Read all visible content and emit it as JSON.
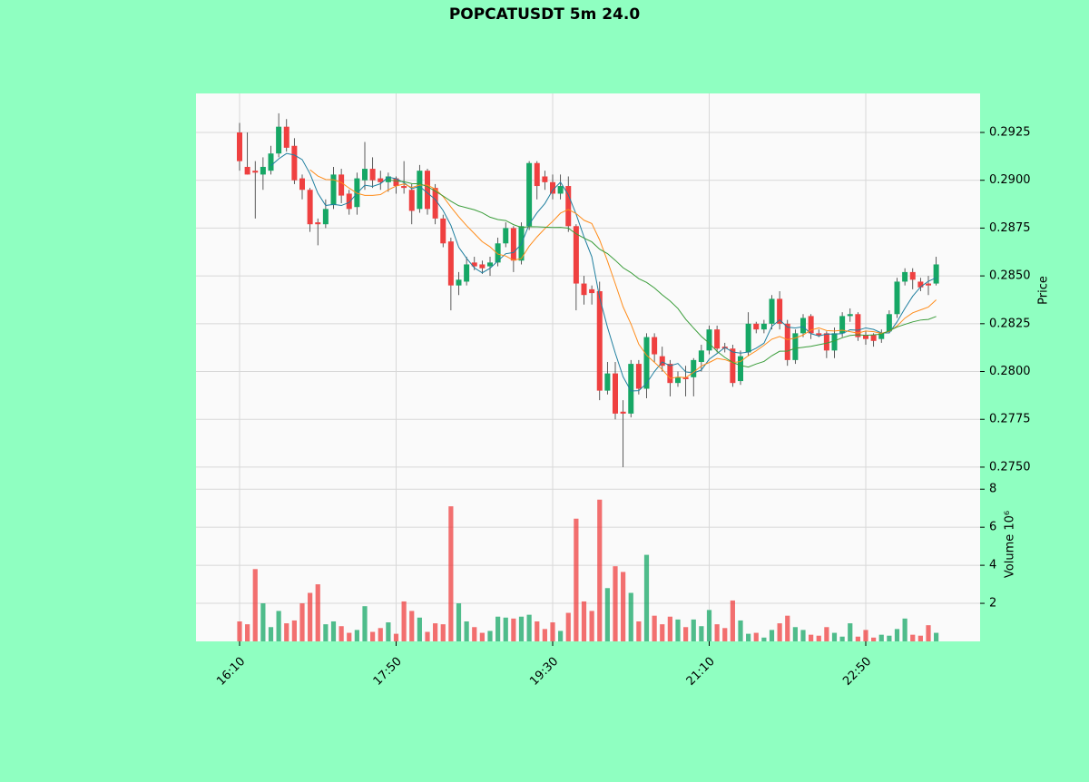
{
  "chart_data": {
    "type": "candlestick",
    "title": "POPCATUSDT 5m 24.0",
    "ylabel": "Price",
    "volume_label": "Volume  10⁶",
    "categories": [
      "16:10",
      null,
      null,
      null,
      null,
      null,
      null,
      null,
      null,
      null,
      null,
      null,
      null,
      null,
      null,
      null,
      null,
      null,
      null,
      null,
      "17:50",
      null,
      null,
      null,
      null,
      null,
      null,
      null,
      null,
      null,
      null,
      null,
      null,
      null,
      null,
      null,
      null,
      null,
      null,
      null,
      "19:30",
      null,
      null,
      null,
      null,
      null,
      null,
      null,
      null,
      null,
      null,
      null,
      null,
      null,
      null,
      null,
      null,
      null,
      null,
      null,
      "21:10",
      null,
      null,
      null,
      null,
      null,
      null,
      null,
      null,
      null,
      null,
      null,
      null,
      null,
      null,
      null,
      null,
      null,
      null,
      null,
      "22:50",
      null,
      null,
      null,
      null,
      null,
      null,
      null,
      null,
      null
    ],
    "open": [
      0.2925,
      0.2907,
      0.2905,
      0.2903,
      0.2905,
      0.2914,
      0.2928,
      0.2918,
      0.2901,
      0.2895,
      0.2878,
      0.2877,
      0.2887,
      0.2903,
      0.2893,
      0.2886,
      0.29,
      0.2906,
      0.2901,
      0.2899,
      0.2901,
      0.2897,
      0.2895,
      0.2885,
      0.2905,
      0.2896,
      0.288,
      0.2868,
      0.2845,
      0.2847,
      0.2857,
      0.2856,
      0.2855,
      0.2857,
      0.2867,
      0.2875,
      0.2858,
      0.2876,
      0.2909,
      0.2902,
      0.2899,
      0.2893,
      0.2897,
      0.2876,
      0.2846,
      0.2843,
      0.2842,
      0.279,
      0.2799,
      0.2779,
      0.2778,
      0.2804,
      0.2791,
      0.2818,
      0.2808,
      0.2804,
      0.2794,
      0.2797,
      0.2797,
      0.2805,
      0.2811,
      0.2822,
      0.2813,
      0.2812,
      0.2795,
      0.281,
      0.2825,
      0.2822,
      0.2825,
      0.2838,
      0.2825,
      0.2806,
      0.282,
      0.2829,
      0.282,
      0.282,
      0.2811,
      0.282,
      0.2829,
      0.283,
      0.2819,
      0.2819,
      0.2817,
      0.2821,
      0.283,
      0.2847,
      0.2852,
      0.2847,
      0.2846,
      0.2846
    ],
    "high": [
      0.293,
      0.2925,
      0.291,
      0.2912,
      0.2918,
      0.2935,
      0.2932,
      0.2922,
      0.2903,
      0.2896,
      0.288,
      0.289,
      0.2907,
      0.2906,
      0.2895,
      0.2904,
      0.292,
      0.2912,
      0.2905,
      0.2904,
      0.2902,
      0.291,
      0.2898,
      0.2908,
      0.2906,
      0.2898,
      0.2882,
      0.287,
      0.2852,
      0.286,
      0.286,
      0.2858,
      0.286,
      0.287,
      0.2878,
      0.2876,
      0.2878,
      0.291,
      0.291,
      0.2905,
      0.2903,
      0.2903,
      0.2902,
      0.2877,
      0.285,
      0.2845,
      0.2847,
      0.2805,
      0.2805,
      0.2785,
      0.2806,
      0.2806,
      0.282,
      0.282,
      0.2813,
      0.2806,
      0.28,
      0.2803,
      0.2807,
      0.2814,
      0.2824,
      0.2824,
      0.2815,
      0.2814,
      0.2811,
      0.2831,
      0.2826,
      0.2827,
      0.284,
      0.2842,
      0.2827,
      0.2822,
      0.283,
      0.283,
      0.2822,
      0.2821,
      0.2823,
      0.2831,
      0.2833,
      0.2831,
      0.2821,
      0.282,
      0.2822,
      0.2832,
      0.2849,
      0.2854,
      0.2854,
      0.2849,
      0.285,
      0.286
    ],
    "low": [
      0.2905,
      0.2903,
      0.288,
      0.2895,
      0.2903,
      0.2912,
      0.2915,
      0.2898,
      0.289,
      0.2873,
      0.2866,
      0.2875,
      0.2885,
      0.2888,
      0.2882,
      0.2882,
      0.2895,
      0.2896,
      0.2895,
      0.2894,
      0.2893,
      0.2893,
      0.2877,
      0.2883,
      0.2882,
      0.2877,
      0.2865,
      0.2832,
      0.284,
      0.2845,
      0.2853,
      0.2851,
      0.285,
      0.2855,
      0.2865,
      0.2852,
      0.2856,
      0.2874,
      0.289,
      0.2895,
      0.289,
      0.289,
      0.2873,
      0.2832,
      0.2835,
      0.2835,
      0.2785,
      0.2788,
      0.2775,
      0.275,
      0.2776,
      0.2788,
      0.2786,
      0.2805,
      0.28,
      0.2787,
      0.2792,
      0.2787,
      0.2787,
      0.28,
      0.2809,
      0.281,
      0.281,
      0.2792,
      0.2793,
      0.2808,
      0.282,
      0.282,
      0.2822,
      0.2822,
      0.2803,
      0.2804,
      0.2818,
      0.2817,
      0.2818,
      0.2807,
      0.2807,
      0.2818,
      0.2826,
      0.2816,
      0.2814,
      0.2813,
      0.2815,
      0.282,
      0.2828,
      0.2845,
      0.2843,
      0.2842,
      0.284,
      0.2845
    ],
    "close": [
      0.291,
      0.2903,
      0.2904,
      0.2907,
      0.2914,
      0.2928,
      0.2917,
      0.29,
      0.2895,
      0.2877,
      0.2877,
      0.2885,
      0.2903,
      0.2892,
      0.2885,
      0.2901,
      0.2906,
      0.29,
      0.2899,
      0.2902,
      0.2897,
      0.2896,
      0.2884,
      0.2905,
      0.2885,
      0.288,
      0.2867,
      0.2845,
      0.2848,
      0.2856,
      0.2855,
      0.2854,
      0.2857,
      0.2867,
      0.2875,
      0.2858,
      0.2876,
      0.2909,
      0.2897,
      0.2899,
      0.2893,
      0.2897,
      0.2876,
      0.2846,
      0.284,
      0.2841,
      0.279,
      0.2799,
      0.2778,
      0.2778,
      0.2804,
      0.2791,
      0.2818,
      0.2809,
      0.2803,
      0.2794,
      0.2797,
      0.2796,
      0.2806,
      0.2811,
      0.2822,
      0.2812,
      0.2812,
      0.2794,
      0.2808,
      0.2825,
      0.2822,
      0.2825,
      0.2838,
      0.2825,
      0.2806,
      0.282,
      0.2828,
      0.282,
      0.2819,
      0.2811,
      0.282,
      0.2829,
      0.283,
      0.2818,
      0.2817,
      0.2816,
      0.282,
      0.283,
      0.2847,
      0.2852,
      0.2848,
      0.2844,
      0.2845,
      0.2856
    ],
    "volume": [
      1.05,
      0.9,
      3.8,
      2.0,
      0.75,
      1.6,
      0.95,
      1.1,
      2.0,
      2.55,
      3.0,
      0.9,
      1.05,
      0.8,
      0.45,
      0.6,
      1.85,
      0.5,
      0.7,
      1.0,
      0.4,
      2.1,
      1.6,
      1.25,
      0.5,
      0.95,
      0.9,
      7.1,
      2.0,
      1.05,
      0.75,
      0.45,
      0.55,
      1.3,
      1.25,
      1.2,
      1.3,
      1.4,
      1.05,
      0.65,
      1.0,
      0.55,
      1.5,
      6.45,
      2.1,
      1.6,
      7.45,
      2.8,
      3.95,
      3.65,
      2.55,
      1.05,
      4.55,
      1.35,
      0.9,
      1.3,
      1.15,
      0.75,
      1.15,
      0.8,
      1.65,
      0.9,
      0.7,
      2.15,
      1.1,
      0.4,
      0.45,
      0.2,
      0.6,
      0.95,
      1.35,
      0.75,
      0.6,
      0.35,
      0.3,
      0.75,
      0.45,
      0.25,
      0.95,
      0.25,
      0.6,
      0.2,
      0.35,
      0.3,
      0.65,
      1.2,
      0.35,
      0.3,
      0.85,
      0.45
    ],
    "up_color": "#16a765",
    "down_color": "#ef4040",
    "moving_averages": [
      {
        "period": 5,
        "color": "#1f7f9f"
      },
      {
        "period": 10,
        "color": "#ff8c1a"
      },
      {
        "period": 20,
        "color": "#3a9d3a"
      }
    ],
    "ylim": [
      0.27438,
      0.29454
    ],
    "yticks": [
      {
        "value": 0.275,
        "label": "0.2750"
      },
      {
        "value": 0.2775,
        "label": "0.2775"
      },
      {
        "value": 0.28,
        "label": "0.2800"
      },
      {
        "value": 0.2825,
        "label": "0.2825"
      },
      {
        "value": 0.285,
        "label": "0.2850"
      },
      {
        "value": 0.2875,
        "label": "0.2875"
      },
      {
        "value": 0.29,
        "label": "0.2900"
      },
      {
        "value": 0.2925,
        "label": "0.2925"
      }
    ],
    "volume_ylim": [
      0,
      8.44
    ],
    "volume_yticks": [
      2,
      4,
      6,
      8
    ],
    "grid": true
  }
}
